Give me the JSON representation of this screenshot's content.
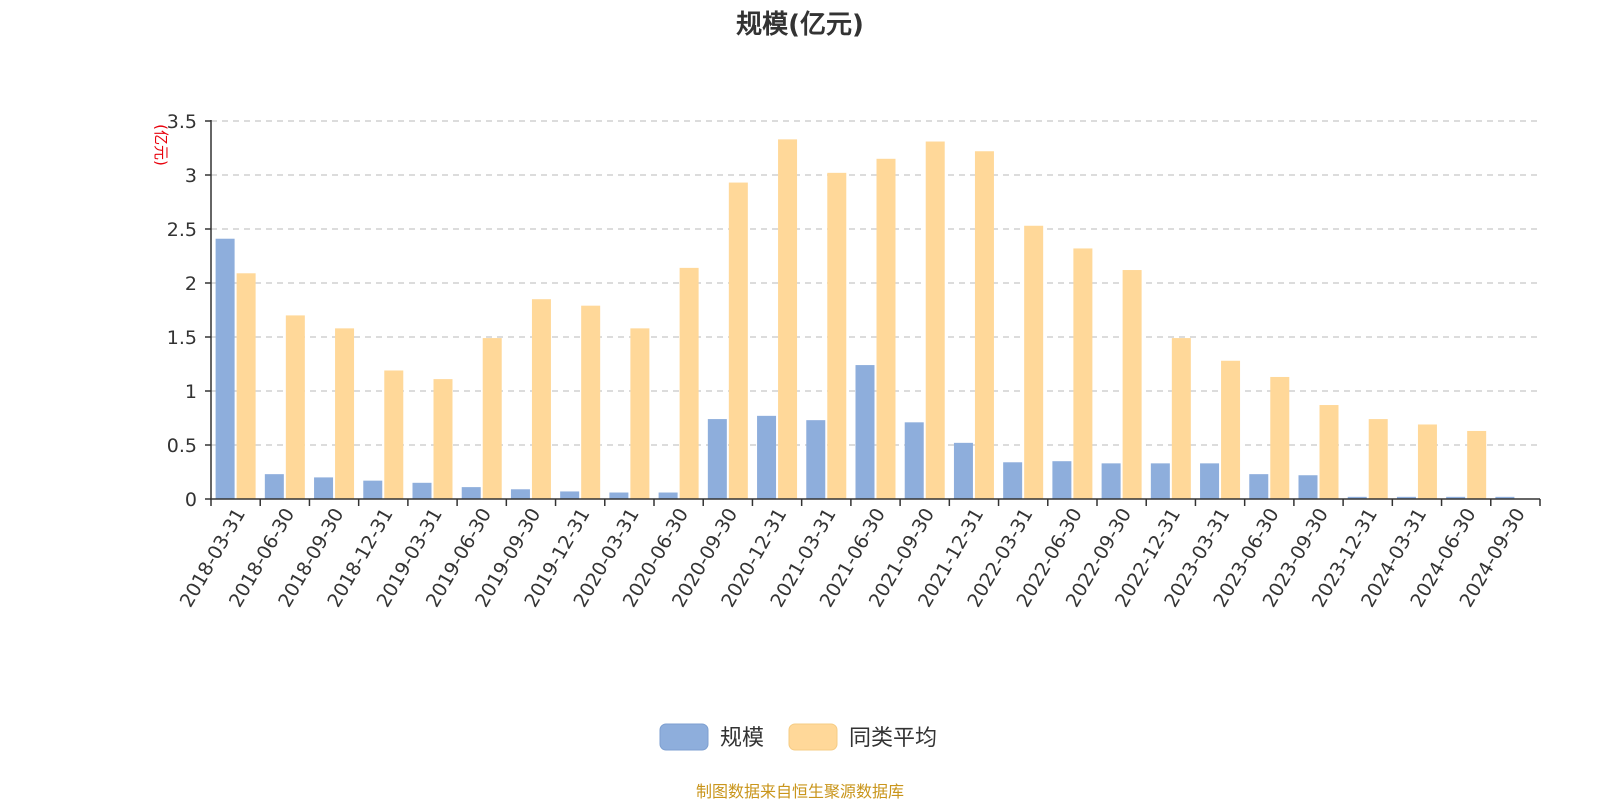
{
  "chart_data": {
    "type": "bar",
    "title": "规模(亿元)",
    "ylabel": "(亿元)",
    "ylim": [
      0,
      3.5
    ],
    "yticks": [
      "0",
      "0.5",
      "1",
      "1.5",
      "2",
      "2.5",
      "3",
      "3.5"
    ],
    "grid": true,
    "legend_position": "bottom-center",
    "categories": [
      "2018-03-31",
      "2018-06-30",
      "2018-09-30",
      "2018-12-31",
      "2019-03-31",
      "2019-06-30",
      "2019-09-30",
      "2019-12-31",
      "2020-03-31",
      "2020-06-30",
      "2020-09-30",
      "2020-12-31",
      "2021-03-31",
      "2021-06-30",
      "2021-09-30",
      "2021-12-31",
      "2022-03-31",
      "2022-06-30",
      "2022-09-30",
      "2022-12-31",
      "2023-03-31",
      "2023-06-30",
      "2023-09-30",
      "2023-12-31",
      "2024-03-31",
      "2024-06-30",
      "2024-09-30"
    ],
    "series": [
      {
        "name": "规模",
        "color": "#8eaedc",
        "values": [
          2.41,
          0.23,
          0.2,
          0.17,
          0.15,
          0.11,
          0.09,
          0.07,
          0.06,
          0.06,
          0.74,
          0.77,
          0.73,
          1.24,
          0.71,
          0.52,
          0.34,
          0.35,
          0.33,
          0.33,
          0.33,
          0.23,
          0.22,
          0.02,
          0.02,
          0.02,
          0.02
        ]
      },
      {
        "name": "同类平均",
        "color": "#ffd899",
        "values": [
          2.09,
          1.7,
          1.58,
          1.19,
          1.11,
          1.49,
          1.85,
          1.79,
          1.58,
          2.14,
          2.93,
          3.33,
          3.02,
          3.15,
          3.31,
          3.22,
          2.53,
          2.32,
          2.12,
          1.49,
          1.28,
          1.13,
          0.87,
          0.74,
          0.69,
          0.63,
          null
        ]
      }
    ]
  },
  "footer": {
    "source": "制图数据来自恒生聚源数据库"
  }
}
